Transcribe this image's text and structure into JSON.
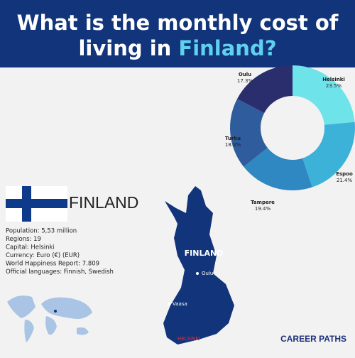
{
  "header": {
    "title_line1": "What is the monthly cost of",
    "title_line2": "living in",
    "title_highlight": "Finland?"
  },
  "chart_data": {
    "type": "pie",
    "categories": [
      "Helsinki",
      "Espoo",
      "Tampere",
      "Turku",
      "Oulu"
    ],
    "values": [
      23.5,
      21.4,
      19.4,
      18.4,
      17.3
    ],
    "value_labels": [
      "23.5%",
      "21.4%",
      "19.4%",
      "18.4%",
      "17.3%"
    ],
    "colors": [
      "#6fe3ea",
      "#3db2d9",
      "#2f88c2",
      "#2e5c9c",
      "#2b2e6d"
    ]
  },
  "country": {
    "name": "FINLAND",
    "facts": [
      "Population: 5,53 million",
      "Regions: 19",
      "Capital: Helsinki",
      "Currency: Euro (€) (EUR)",
      "World Happiness Report: 7.809",
      "Official languages: Finnish, Swedish"
    ]
  },
  "map": {
    "label": "FINLAND",
    "cities": [
      "Oulu",
      "Vaasa",
      "HELSINKI"
    ]
  },
  "logo": {
    "text": "CAREER PATHS"
  }
}
